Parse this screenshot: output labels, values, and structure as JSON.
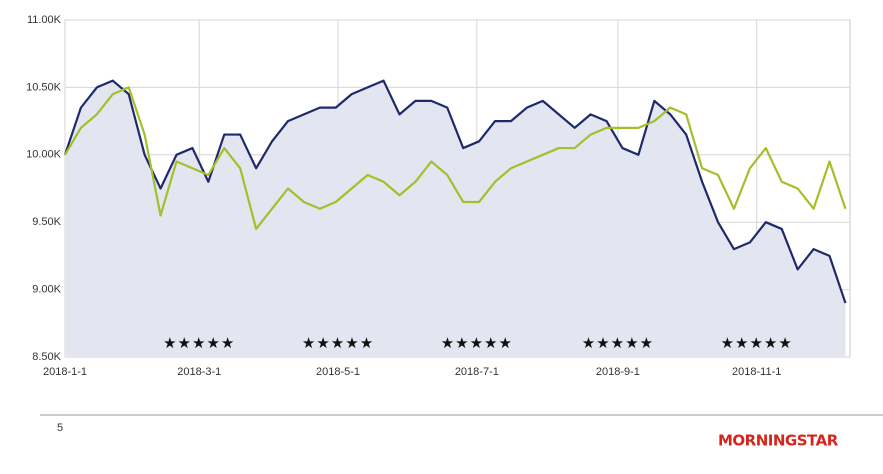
{
  "chart_data": {
    "type": "line",
    "x": [
      "2018-1-1",
      "2018-1-8",
      "2018-1-15",
      "2018-1-22",
      "2018-1-29",
      "2018-2-5",
      "2018-2-12",
      "2018-2-19",
      "2018-2-26",
      "2018-3-5",
      "2018-3-12",
      "2018-3-19",
      "2018-3-26",
      "2018-4-2",
      "2018-4-9",
      "2018-4-16",
      "2018-4-23",
      "2018-4-30",
      "2018-5-7",
      "2018-5-14",
      "2018-5-21",
      "2018-5-28",
      "2018-6-4",
      "2018-6-11",
      "2018-6-18",
      "2018-6-25",
      "2018-7-2",
      "2018-7-9",
      "2018-7-16",
      "2018-7-23",
      "2018-7-30",
      "2018-8-6",
      "2018-8-13",
      "2018-8-20",
      "2018-8-27",
      "2018-9-3",
      "2018-9-10",
      "2018-9-17",
      "2018-9-24",
      "2018-10-1",
      "2018-10-8",
      "2018-10-15",
      "2018-10-22",
      "2018-10-29",
      "2018-11-5",
      "2018-11-12",
      "2018-11-19",
      "2018-11-26",
      "2018-12-3",
      "2018-12-10"
    ],
    "series": [
      {
        "color": "#1f2a6b",
        "fill": "#e3e6f0",
        "values": [
          10000,
          10350,
          10500,
          10550,
          10450,
          10000,
          9750,
          10000,
          10050,
          9800,
          10150,
          10150,
          9900,
          10100,
          10250,
          10300,
          10350,
          10350,
          10450,
          10500,
          10550,
          10300,
          10400,
          10400,
          10350,
          10050,
          10100,
          10250,
          10250,
          10350,
          10400,
          10300,
          10200,
          10300,
          10250,
          10050,
          10000,
          10400,
          10300,
          10150,
          9800,
          9500,
          9300,
          9350,
          9500,
          9450,
          9150,
          9300,
          9250,
          8900
        ]
      },
      {
        "color": "#a3bf2a",
        "values": [
          10000,
          10200,
          10300,
          10450,
          10500,
          10150,
          9550,
          9950,
          9900,
          9850,
          10050,
          9900,
          9450,
          9600,
          9750,
          9650,
          9600,
          9650,
          9750,
          9850,
          9800,
          9700,
          9800,
          9950,
          9850,
          9650,
          9650,
          9800,
          9900,
          9950,
          10000,
          10050,
          10050,
          10150,
          10200,
          10200,
          10200,
          10250,
          10350,
          10300,
          9900,
          9850,
          9600,
          9900,
          10050,
          9800,
          9750,
          9600,
          9950,
          9600
        ]
      }
    ],
    "xlim": [
      "2018-1-1",
      "2018-12-12"
    ],
    "xticks": [
      "2018-1-1",
      "2018-3-1",
      "2018-5-1",
      "2018-7-1",
      "2018-9-1",
      "2018-11-1"
    ],
    "ylim": [
      8500,
      11000
    ],
    "yticks": [
      {
        "value": 8500,
        "label": "8.50K"
      },
      {
        "value": 9000,
        "label": "9.00K"
      },
      {
        "value": 9500,
        "label": "9.50K"
      },
      {
        "value": 10000,
        "label": "10.00K"
      },
      {
        "value": 10500,
        "label": "10.50K"
      },
      {
        "value": 11000,
        "label": "11.00K"
      }
    ],
    "grid": true,
    "annotations": [
      {
        "x": "2018-3-1",
        "text": "★★★★★"
      },
      {
        "x": "2018-5-1",
        "text": "★★★★★"
      },
      {
        "x": "2018-7-1",
        "text": "★★★★★"
      },
      {
        "x": "2018-9-1",
        "text": "★★★★★"
      },
      {
        "x": "2018-11-1",
        "text": "★★★★★"
      }
    ]
  },
  "footer": {
    "page": "5",
    "logo": "MORNINGSTAR"
  }
}
